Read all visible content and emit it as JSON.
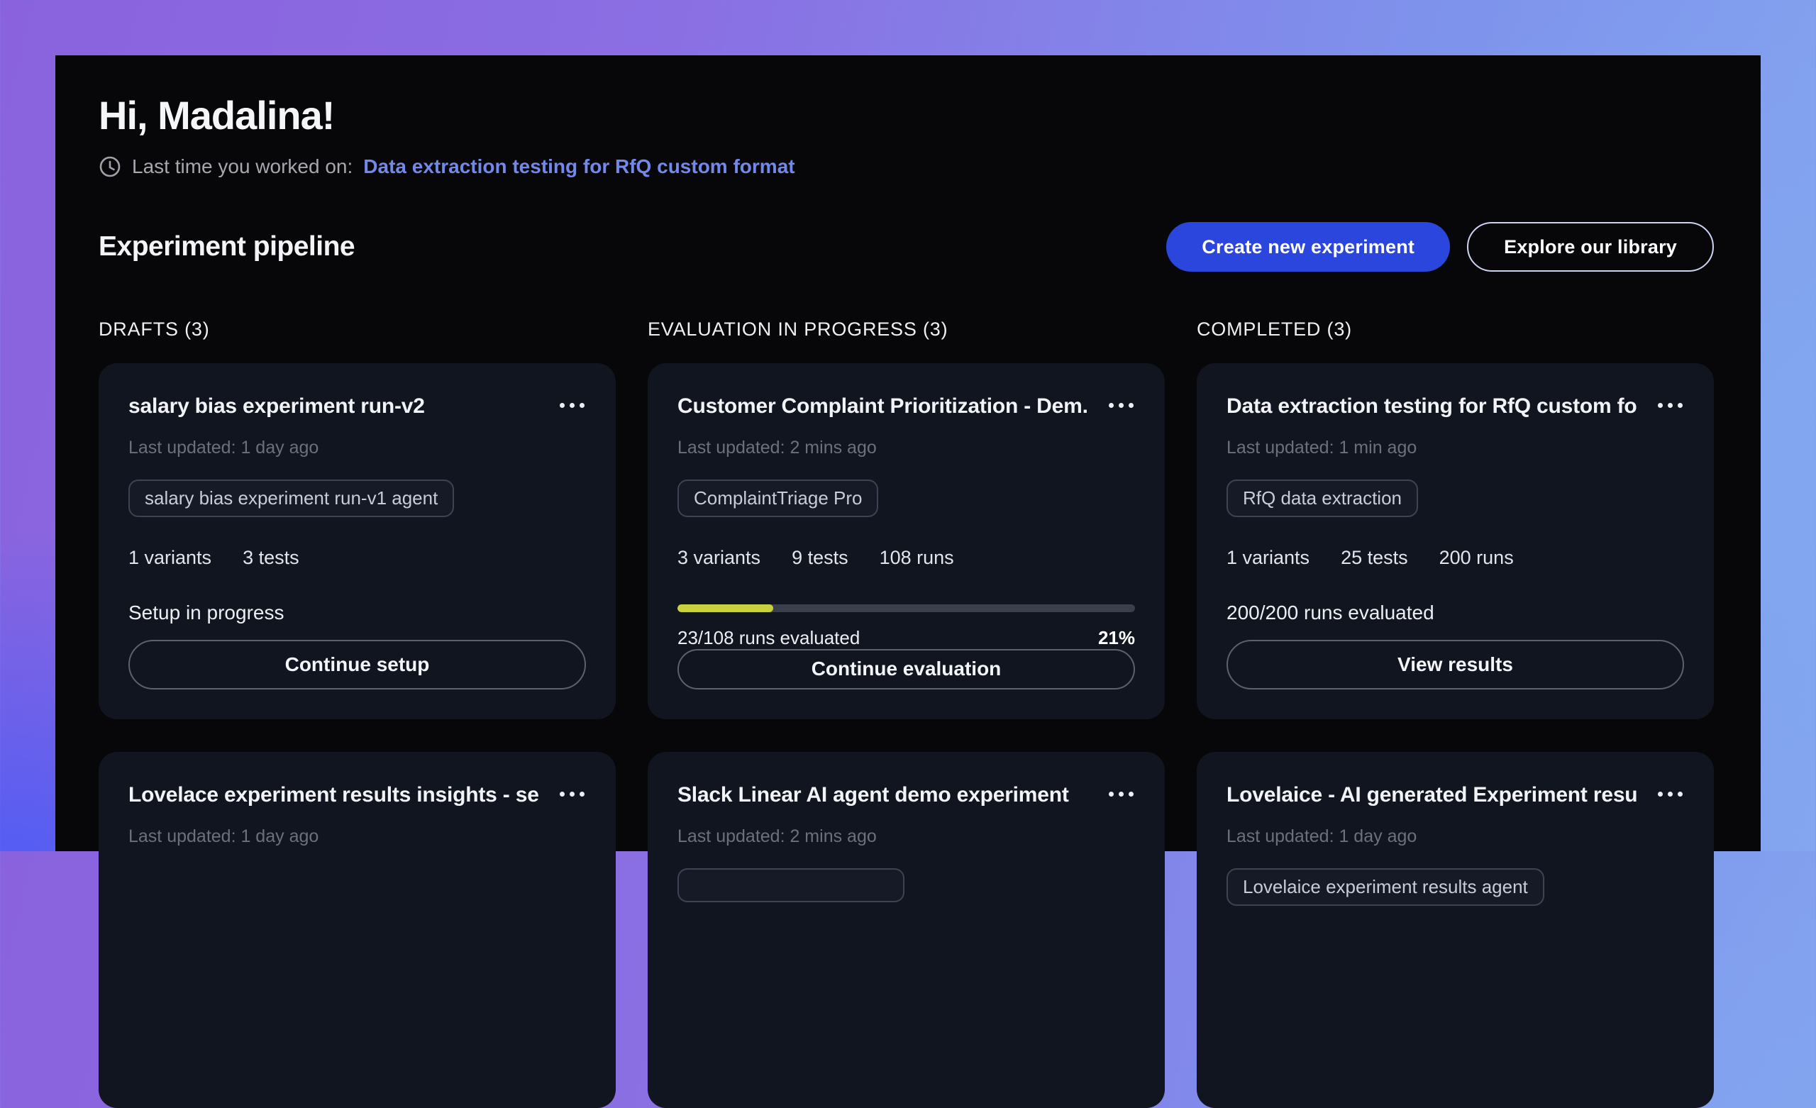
{
  "header": {
    "greeting": "Hi, Madalina!",
    "last_worked_label": "Last time you worked on:",
    "last_worked_link": "Data extraction testing for RfQ custom format"
  },
  "pipeline": {
    "title": "Experiment pipeline",
    "create_button": "Create new experiment",
    "explore_button": "Explore our library"
  },
  "icons": {
    "clock": "clock-icon",
    "card_menu": "ellipsis-menu-icon"
  },
  "colors": {
    "primary_button": "#2a46dd",
    "link": "#7289ea",
    "progress_fill": "#c7d23c",
    "card_background": "#11151f",
    "panel_background": "#07070a"
  },
  "columns": [
    {
      "header": "DRAFTS (3)",
      "cards": [
        {
          "title": "salary bias experiment run-v2",
          "last_updated": "Last updated: 1 day ago",
          "tag": "salary bias experiment run-v1 agent",
          "stats": [
            "1 variants",
            "3 tests"
          ],
          "status_text": "Setup in progress",
          "action": "Continue setup"
        },
        {
          "title": "Lovelace experiment results insights - se...",
          "last_updated": "Last updated: 1 day ago"
        }
      ]
    },
    {
      "header": "EVALUATION IN PROGRESS (3)",
      "cards": [
        {
          "title": "Customer Complaint Prioritization - Dem...",
          "last_updated": "Last updated: 2 mins ago",
          "tag": "ComplaintTriage Pro",
          "stats": [
            "3 variants",
            "9 tests",
            "108 runs"
          ],
          "progress": {
            "percent": 21,
            "label": "23/108 runs evaluated",
            "percent_label": "21%"
          },
          "action": "Continue evaluation"
        },
        {
          "title": "Slack Linear AI agent demo experiment",
          "last_updated": "Last updated: 2 mins ago",
          "tag": ""
        }
      ]
    },
    {
      "header": "COMPLETED (3)",
      "cards": [
        {
          "title": "Data extraction testing for RfQ custom fo...",
          "last_updated": "Last updated: 1 min ago",
          "tag": "RfQ data extraction",
          "stats": [
            "1 variants",
            "25 tests",
            "200 runs"
          ],
          "status_text": "200/200 runs evaluated",
          "action": "View results"
        },
        {
          "title": "Lovelaice - AI generated Experiment resu...",
          "last_updated": "Last updated: 1 day ago",
          "tag": "Lovelaice experiment results agent"
        }
      ]
    }
  ]
}
